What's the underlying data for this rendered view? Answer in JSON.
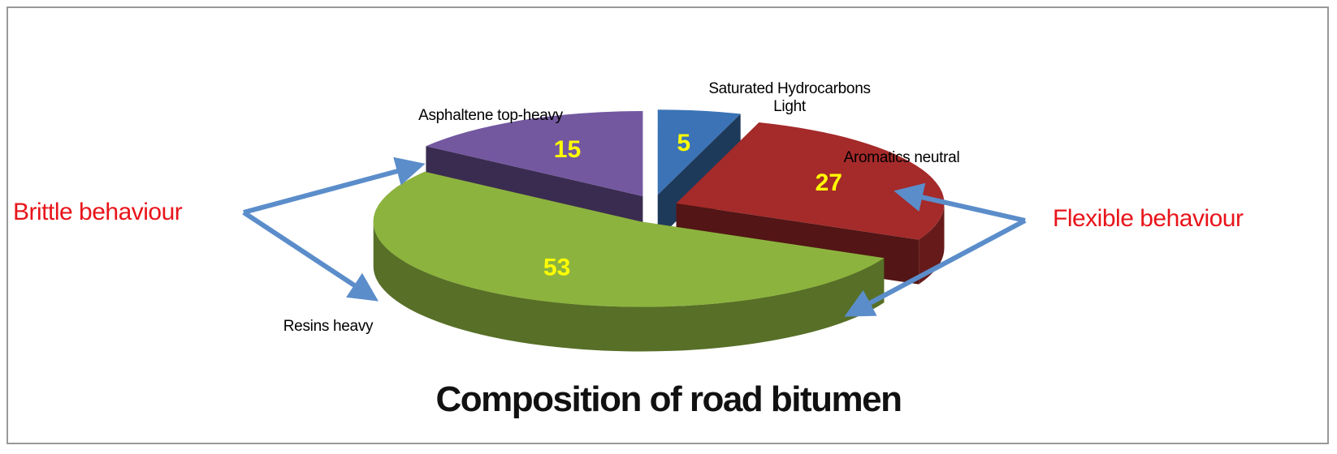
{
  "chart_data": {
    "type": "pie3d",
    "title": "Composition of road bitumen",
    "categories": [
      "Saturated Hydrocarbons Light",
      "Aromatics neutral",
      "Resins heavy",
      "Asphaltene top-heavy"
    ],
    "values": [
      5,
      27,
      53,
      15
    ],
    "colors": [
      "#3b73b6",
      "#a52a2a",
      "#8db33f",
      "#7358a0"
    ],
    "annotations": [
      "Brittle behaviour",
      "Flexible behaviour"
    ]
  }
}
